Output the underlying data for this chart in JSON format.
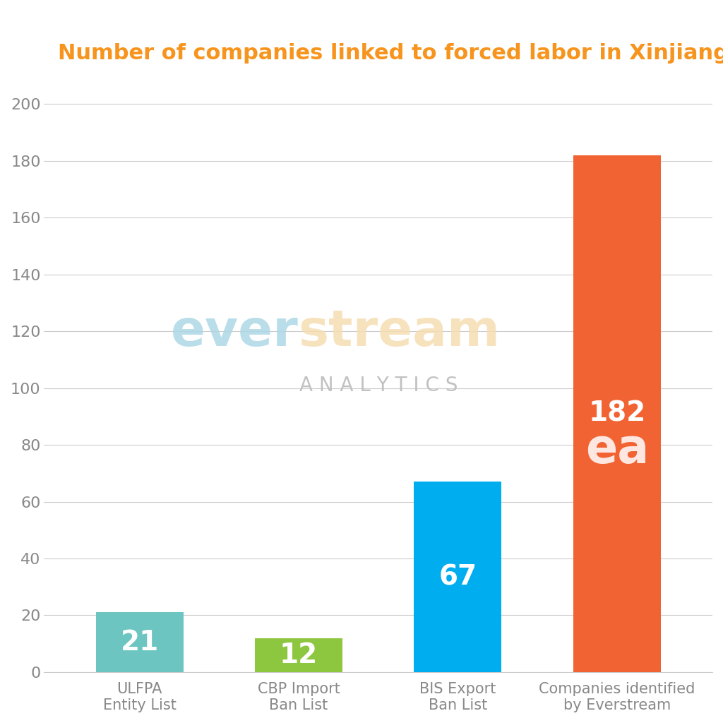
{
  "title": "Number of companies linked to forced labor in Xinjiang:",
  "title_color": "#F7941D",
  "title_fontsize": 22,
  "categories": [
    "ULFPA\nEntity List",
    "CBP Import\nBan List",
    "BIS Export\nBan List",
    "Companies identified\nby Everstream"
  ],
  "values": [
    21,
    12,
    67,
    182
  ],
  "bar_colors": [
    "#6CC5C1",
    "#8DC63F",
    "#00AEEF",
    "#F26334"
  ],
  "value_labels": [
    "21",
    "12",
    "67",
    "182"
  ],
  "ylim": [
    0,
    210
  ],
  "yticks": [
    0,
    20,
    40,
    60,
    80,
    100,
    120,
    140,
    160,
    180,
    200
  ],
  "background_color": "#FFFFFF",
  "grid_color": "#CCCCCC",
  "label_color": "#FFFFFF",
  "label_fontsize": 28,
  "tick_label_color": "#888888",
  "tick_label_fontsize": 16,
  "xlabel_color": "#888888",
  "xlabel_fontsize": 15,
  "watermark_ever_color": "#ADD8E6",
  "watermark_stream_color": "#F5DEB3",
  "watermark_analytics_color": "#BBBBBB",
  "watermark_ea_color": "#FFFFFF",
  "logo_fontsize": 52,
  "logo_analytics_fontsize": 20
}
